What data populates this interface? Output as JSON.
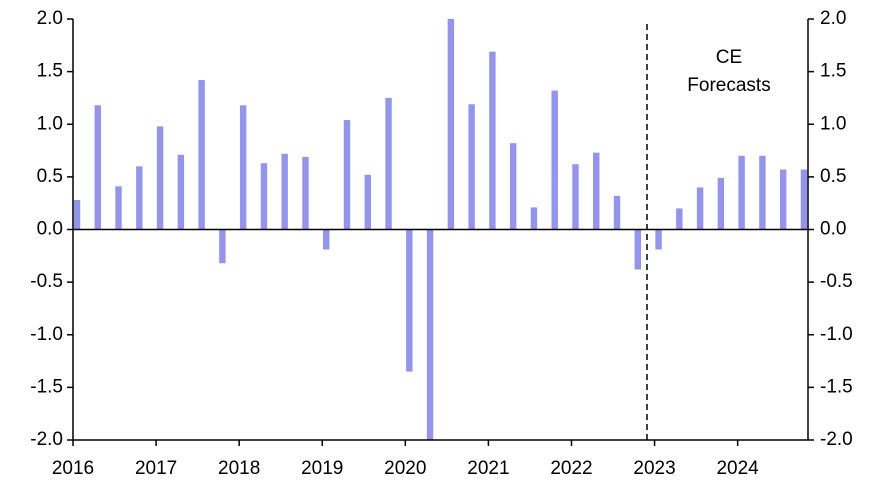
{
  "chart_data": {
    "type": "bar",
    "categories": [
      "2016",
      null,
      null,
      null,
      "2017",
      null,
      null,
      null,
      "2018",
      null,
      null,
      null,
      "2019",
      null,
      null,
      null,
      "2020",
      null,
      null,
      null,
      "2021",
      null,
      null,
      null,
      "2022",
      null,
      null,
      null,
      "2023",
      null,
      null,
      null,
      "2024",
      null,
      null,
      null
    ],
    "values": [
      0.28,
      1.18,
      0.41,
      0.6,
      0.98,
      0.71,
      1.42,
      -0.32,
      1.18,
      0.63,
      0.72,
      0.69,
      -0.19,
      1.04,
      0.52,
      1.25,
      -1.35,
      -2.0,
      2.0,
      1.19,
      1.69,
      0.82,
      0.21,
      1.32,
      0.62,
      0.73,
      0.32,
      -0.38,
      -0.19,
      0.2,
      0.4,
      0.49,
      0.7,
      0.7,
      0.57,
      0.57
    ],
    "color": "#9393f0",
    "ylim": [
      -2.0,
      2.0
    ],
    "yticks": [
      {
        "value": -2,
        "label": "-2.0"
      },
      {
        "value": -1.5,
        "label": "-1.5"
      },
      {
        "value": -1,
        "label": "-1.0"
      },
      {
        "value": -0.5,
        "label": "-0.5"
      },
      {
        "value": 0,
        "label": "0.0"
      },
      {
        "value": 0.5,
        "label": "0.5"
      },
      {
        "value": 1,
        "label": "1.0"
      },
      {
        "value": 1.5,
        "label": "1.5"
      },
      {
        "value": 2,
        "label": "2.0"
      }
    ],
    "y2lim": [
      -2.0,
      2.0
    ],
    "y2ticks": [
      {
        "value": -2,
        "label": "-2.0"
      },
      {
        "value": -1.5,
        "label": "-1.5"
      },
      {
        "value": -1,
        "label": "-1.0"
      },
      {
        "value": -0.5,
        "label": "-0.5"
      },
      {
        "value": 0,
        "label": "0.0"
      },
      {
        "value": 0.5,
        "label": "0.5"
      },
      {
        "value": 1,
        "label": "1.0"
      },
      {
        "value": 1.5,
        "label": "1.5"
      },
      {
        "value": 2,
        "label": "2.0"
      }
    ],
    "annotation": [
      "CE",
      "Forecasts"
    ],
    "grid": false
  }
}
